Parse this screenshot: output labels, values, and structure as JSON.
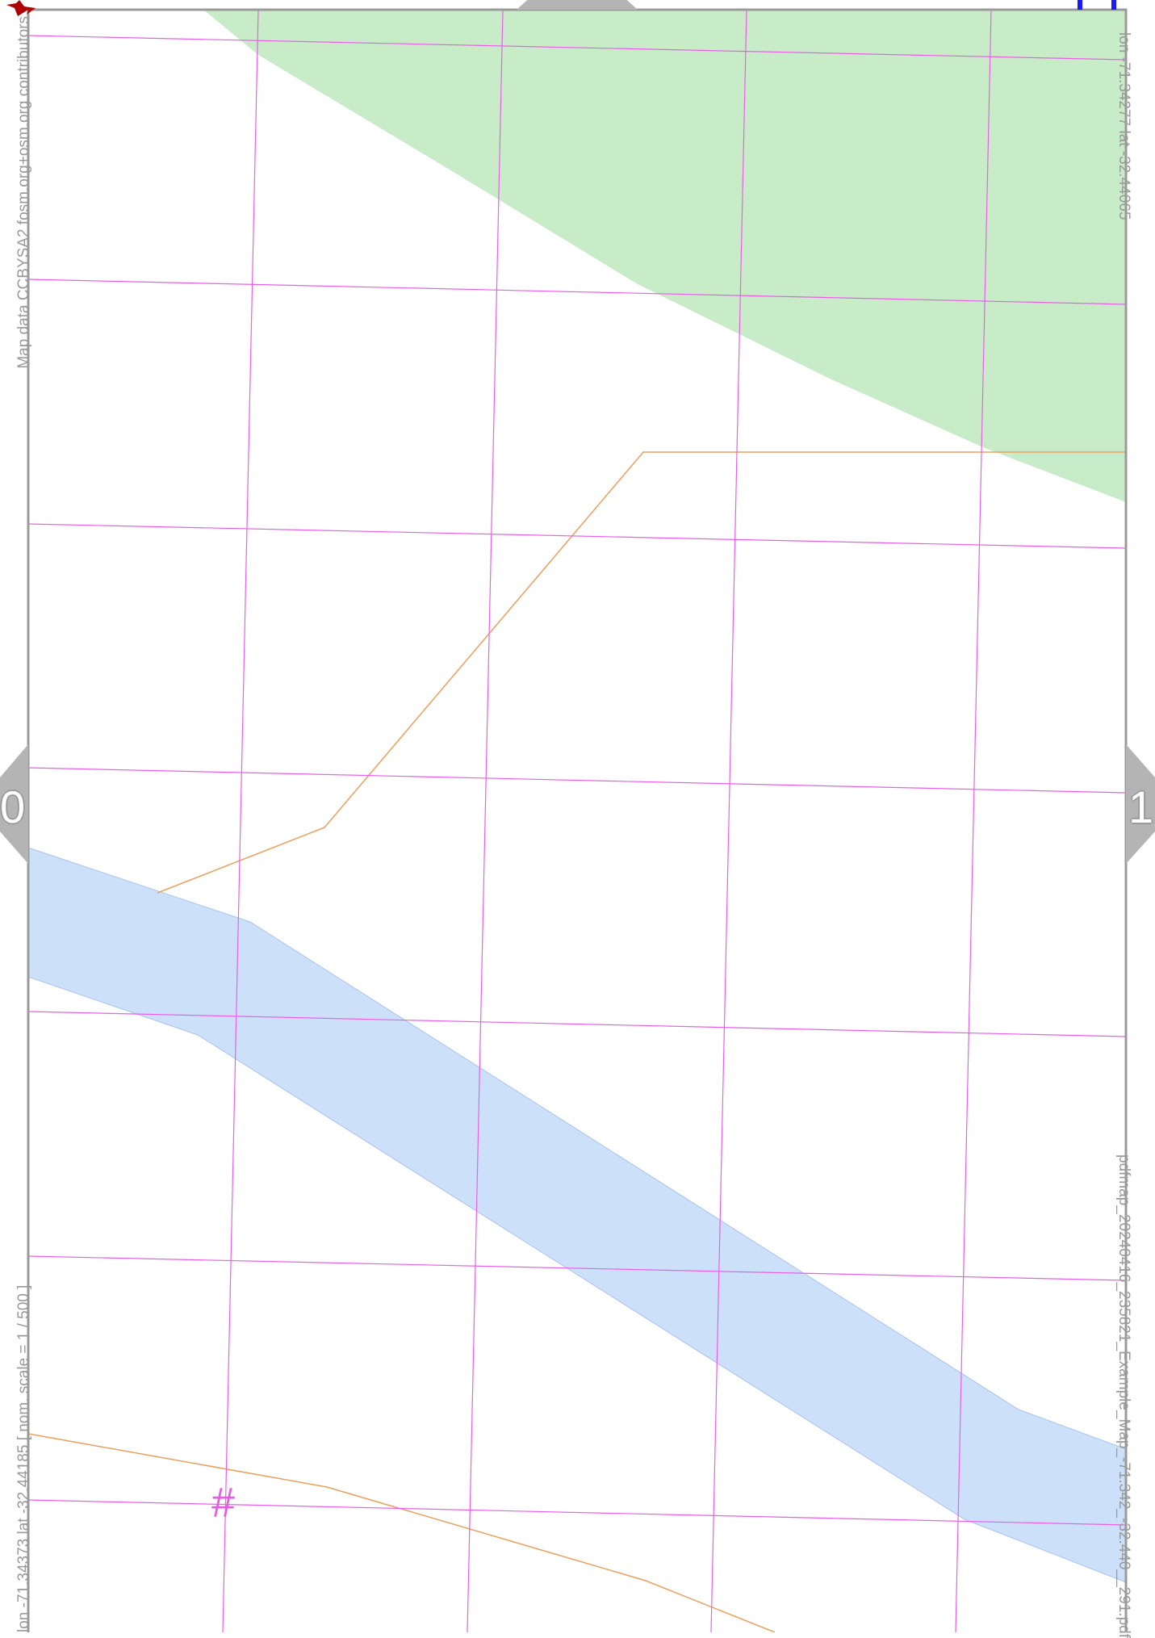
{
  "attribution": "Map data CCBYSA2 fosm.org+osm.org contributors",
  "coordinates": {
    "top_right": "lon -71.34277 lat -32.44065",
    "bottom_left": "lon -71.34373 lat -32.44185 [ nom. scale = 1 / 500 ]"
  },
  "file_label": "pdfmap_20240416_235821_Example_Map_-71.342_-32.440__291.pdf",
  "navigation": {
    "left_page": "0",
    "right_page": "1"
  },
  "grid_marker": "#",
  "colors": {
    "park": "#c8ecc8",
    "water": "#cde0fa",
    "water_edge": "#a9c3ee",
    "grid": "#e860e8",
    "path": "#e8a060",
    "frame": "#9a9a9a",
    "nav_arrow": "#b4b4b4",
    "marker_red": "#b00000",
    "marker_blue": "#1a1aff"
  }
}
